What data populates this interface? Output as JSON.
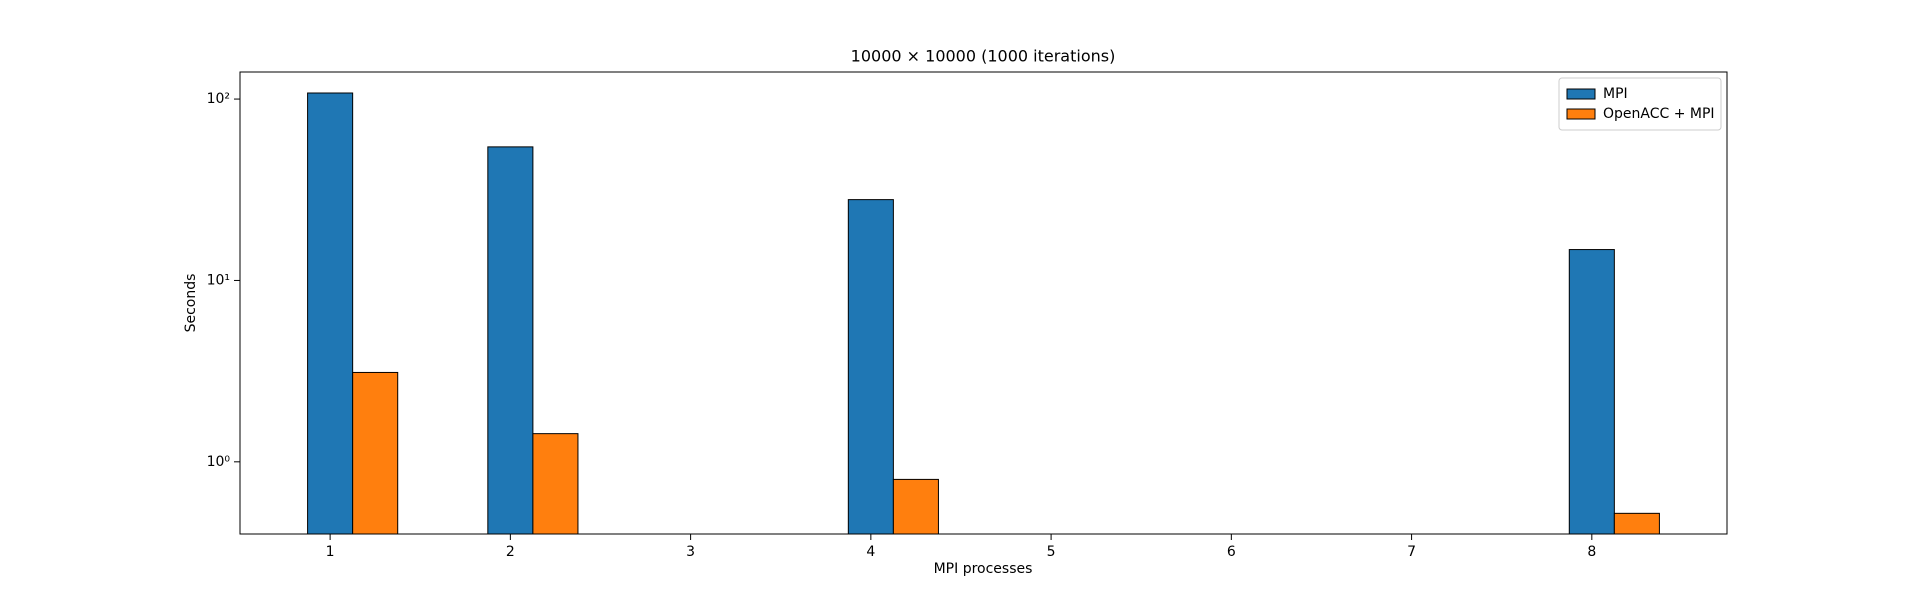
{
  "chart_data": {
    "type": "bar",
    "title": "10000 × 10000 (1000 iterations)",
    "x_label": "MPI processes",
    "y_label": "Seconds",
    "x": [
      1,
      2,
      4,
      8
    ],
    "series": [
      {
        "name": "MPI",
        "color": "#1f77b4",
        "values": [
          108,
          54.5,
          27.9,
          14.8
        ]
      },
      {
        "name": "OpenACC + MPI",
        "color": "#ff7f0e",
        "values": [
          3.11,
          1.43,
          0.8,
          0.52
        ]
      }
    ],
    "xlim": [
      0.5,
      8.75
    ],
    "xticks": [
      1,
      2,
      3,
      4,
      5,
      6,
      7,
      8
    ],
    "ylim": [
      0.4,
      141
    ],
    "y_scale": "log",
    "yticks": [
      {
        "value": 1,
        "label": "10⁰"
      },
      {
        "value": 10,
        "label": "10¹"
      },
      {
        "value": 100,
        "label": "10²"
      }
    ],
    "bar_width": 0.25,
    "grid": false,
    "legend": "upper right"
  }
}
